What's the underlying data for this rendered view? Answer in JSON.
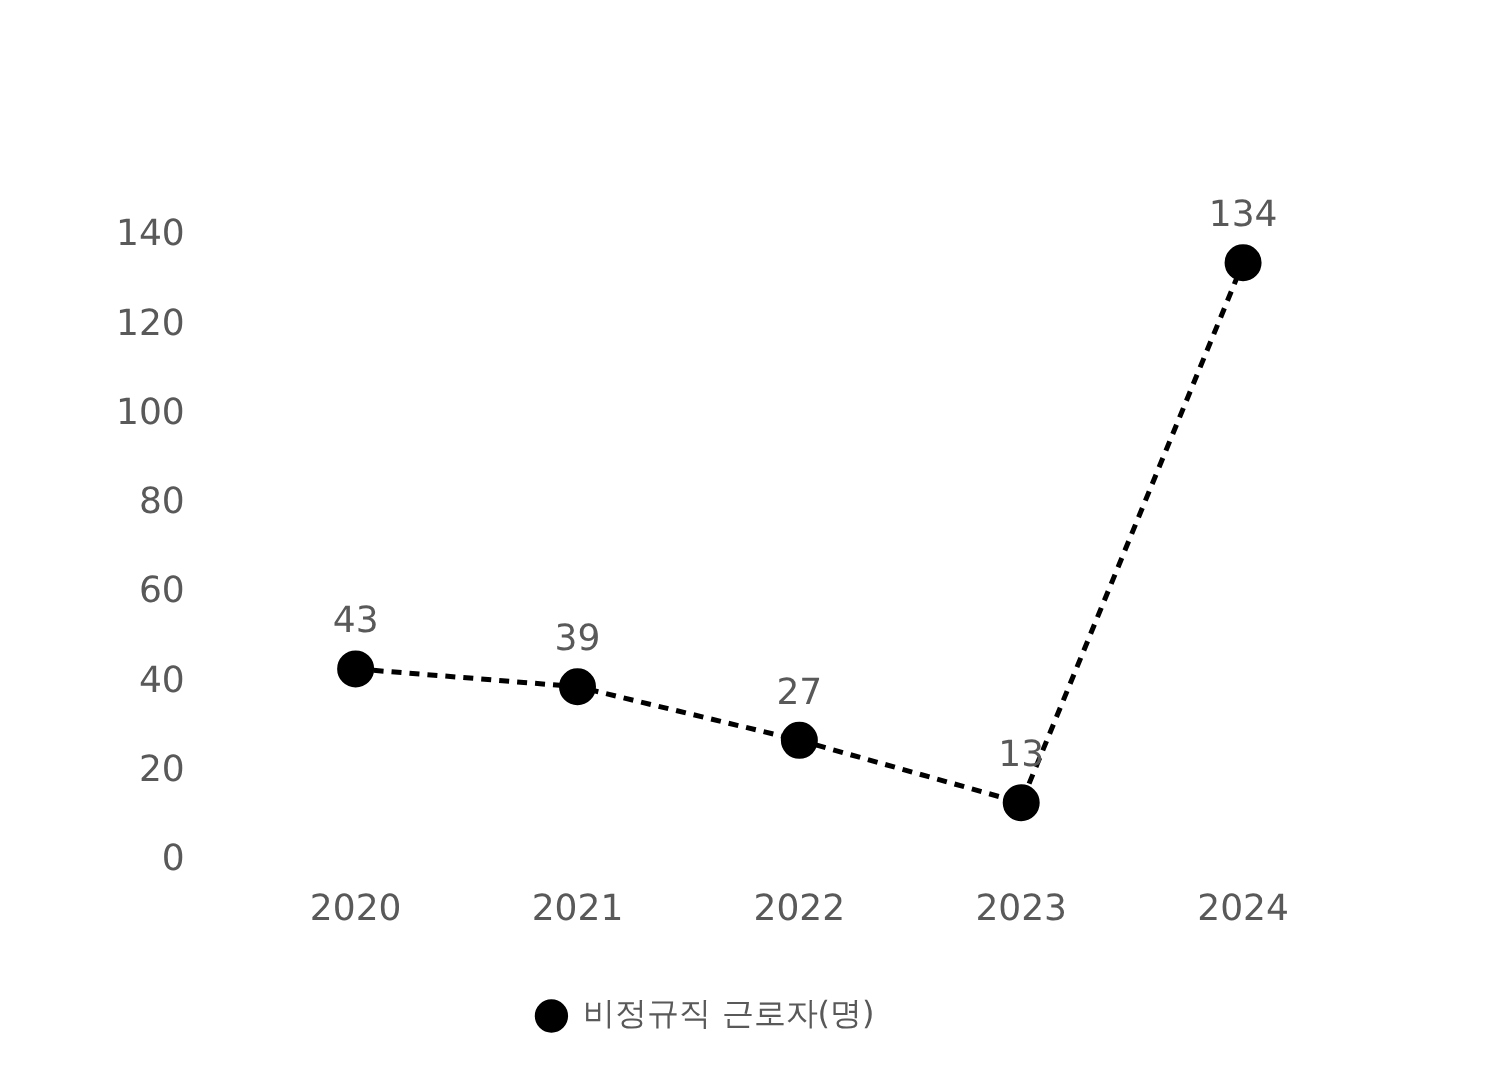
{
  "chart_data": {
    "type": "line",
    "categories": [
      "2020",
      "2021",
      "2022",
      "2023",
      "2024"
    ],
    "series": [
      {
        "name": "비정규직 근로자(명)",
        "color": "#000000",
        "values": [
          43,
          39,
          27,
          13,
          134
        ]
      }
    ],
    "ylim": [
      0,
      140
    ],
    "yticks": [
      0,
      20,
      40,
      60,
      80,
      100,
      120,
      140
    ],
    "grid": false,
    "legend": "bottom",
    "marker": "circle",
    "line_style": "dashed",
    "data_labels": true
  }
}
